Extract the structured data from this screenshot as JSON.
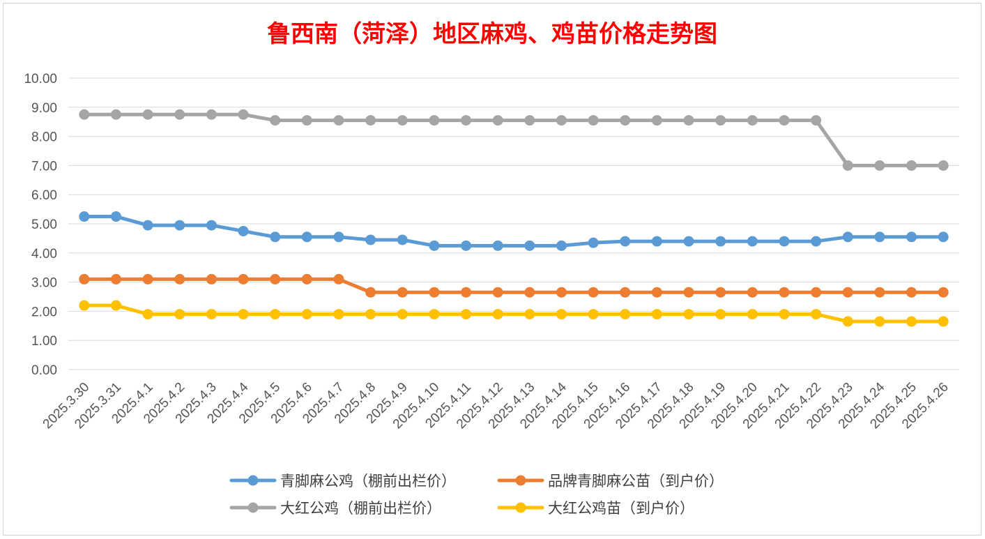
{
  "chart_data": {
    "type": "line",
    "title": "鲁西南（菏泽）地区麻鸡、鸡苗价格走势图",
    "title_color": "#ff0000",
    "xlabel": "",
    "ylabel": "",
    "ylim": [
      0,
      10
    ],
    "yticks": [
      "0.00",
      "1.00",
      "2.00",
      "3.00",
      "4.00",
      "5.00",
      "6.00",
      "7.00",
      "8.00",
      "9.00",
      "10.00"
    ],
    "grid": true,
    "legend_position": "bottom",
    "categories": [
      "2025.3.30",
      "2025.3.31",
      "2025.4.1",
      "2025.4.2",
      "2025.4.3",
      "2025.4.4",
      "2025.4.5",
      "2025.4.6",
      "2025.4.7",
      "2025.4.8",
      "2025.4.9",
      "2025.4.10",
      "2025.4.11",
      "2025.4.12",
      "2025.4.13",
      "2025.4.14",
      "2025.4.15",
      "2025.4.16",
      "2025.4.17",
      "2025.4.18",
      "2025.4.19",
      "2025.4.20",
      "2025.4.21",
      "2025.4.22",
      "2025.4.23",
      "2025.4.24",
      "2025.4.25",
      "2025.4.26"
    ],
    "series": [
      {
        "name": "青脚麻公鸡（棚前出栏价）",
        "color": "#5b9bd5",
        "values": [
          5.25,
          5.25,
          4.95,
          4.95,
          4.95,
          4.75,
          4.55,
          4.55,
          4.55,
          4.45,
          4.45,
          4.25,
          4.25,
          4.25,
          4.25,
          4.25,
          4.35,
          4.4,
          4.4,
          4.4,
          4.4,
          4.4,
          4.4,
          4.4,
          4.55,
          4.55,
          4.55,
          4.55
        ]
      },
      {
        "name": "品牌青脚麻公苗（到户价）",
        "color": "#ed7d31",
        "values": [
          3.1,
          3.1,
          3.1,
          3.1,
          3.1,
          3.1,
          3.1,
          3.1,
          3.1,
          2.65,
          2.65,
          2.65,
          2.65,
          2.65,
          2.65,
          2.65,
          2.65,
          2.65,
          2.65,
          2.65,
          2.65,
          2.65,
          2.65,
          2.65,
          2.65,
          2.65,
          2.65,
          2.65
        ]
      },
      {
        "name": "大红公鸡（棚前出栏价）",
        "color": "#a5a5a5",
        "values": [
          8.75,
          8.75,
          8.75,
          8.75,
          8.75,
          8.75,
          8.55,
          8.55,
          8.55,
          8.55,
          8.55,
          8.55,
          8.55,
          8.55,
          8.55,
          8.55,
          8.55,
          8.55,
          8.55,
          8.55,
          8.55,
          8.55,
          8.55,
          8.55,
          7.0,
          7.0,
          7.0,
          7.0
        ]
      },
      {
        "name": "大红公鸡苗（到户价）",
        "color": "#ffc000",
        "values": [
          2.2,
          2.2,
          1.9,
          1.9,
          1.9,
          1.9,
          1.9,
          1.9,
          1.9,
          1.9,
          1.9,
          1.9,
          1.9,
          1.9,
          1.9,
          1.9,
          1.9,
          1.9,
          1.9,
          1.9,
          1.9,
          1.9,
          1.9,
          1.9,
          1.65,
          1.65,
          1.65,
          1.65
        ]
      }
    ]
  }
}
